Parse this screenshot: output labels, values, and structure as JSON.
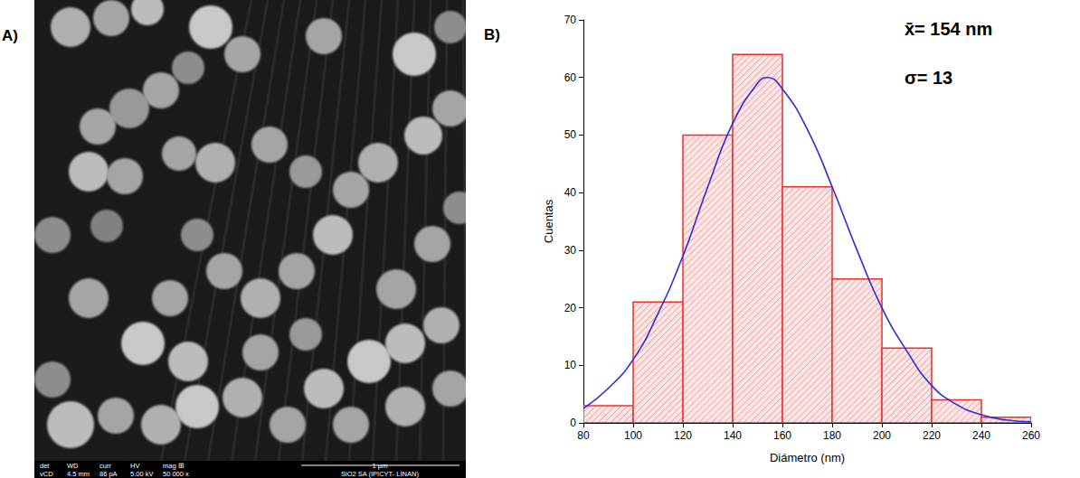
{
  "micrograph": {
    "title": "A)",
    "info_labels": [
      "det",
      "WD",
      "curr",
      "HV",
      "mag ⊞"
    ],
    "info_values": [
      "vCD",
      "4.5 mm",
      "86 pA",
      "5.00 kV",
      "50 000 x"
    ],
    "scale_bar": "1 µm",
    "sample": "SiO2 SA   (IPICYT-  LINAN)"
  },
  "chart_data": {
    "type": "histogram",
    "title": "B)",
    "x_label": "Diámetro (nm)",
    "y_label": "Cuentas",
    "bins": [
      80,
      100,
      120,
      140,
      160,
      180,
      200,
      220,
      240,
      260
    ],
    "counts": [
      3,
      21,
      50,
      64,
      41,
      25,
      13,
      4,
      1
    ],
    "color": "#e8302c",
    "series": [
      {
        "type": "line",
        "color": "#2b2bdc",
        "x": [
          80,
          90,
          100,
          110,
          120,
          130,
          140,
          150,
          154,
          160,
          170,
          180,
          190,
          200,
          210,
          220,
          230,
          240,
          250,
          260
        ],
        "values": [
          2.5,
          6,
          11,
          19,
          29,
          41,
          52,
          59,
          60,
          58,
          51,
          41,
          30,
          20,
          12.5,
          6.5,
          3.2,
          1.4,
          0.5,
          0.2
        ]
      }
    ],
    "xlim": [
      80,
      260
    ],
    "xticks": [
      80,
      100,
      120,
      140,
      160,
      180,
      200,
      220,
      240,
      260
    ],
    "ylim": [
      0,
      70
    ],
    "yticks": [
      0,
      10,
      20,
      30,
      40,
      50,
      60,
      70
    ],
    "annotations": [
      "x̄= 154 nm",
      "σ= 13"
    ],
    "grid": false
  }
}
